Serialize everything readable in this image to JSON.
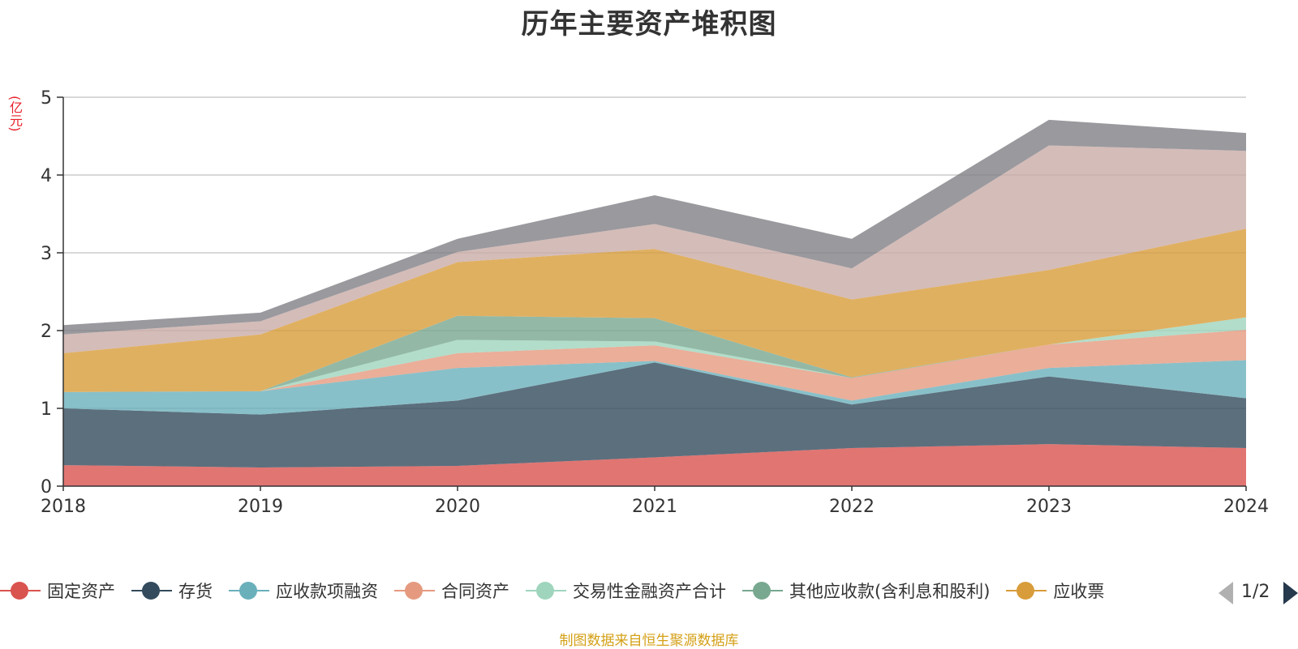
{
  "title": "历年主要资产堆积图",
  "unit": "(亿元)",
  "source_note": "制图数据来自恒生聚源数据库",
  "pager": {
    "text": "1/2"
  },
  "chart_data": {
    "type": "area",
    "stacked": true,
    "title": "历年主要资产堆积图",
    "ylabel": "(亿元)",
    "ylim": [
      0,
      5
    ],
    "yticks": [
      "0",
      "1",
      "2",
      "3",
      "4",
      "5"
    ],
    "categories": [
      "2018",
      "2019",
      "2020",
      "2021",
      "2022",
      "2023",
      "2024"
    ],
    "grid": true,
    "legend_position": "bottom",
    "series": [
      {
        "name": "固定资产",
        "legend": true,
        "color": "#d9534f",
        "values": [
          0.27,
          0.24,
          0.26,
          0.37,
          0.49,
          0.54,
          0.49
        ]
      },
      {
        "name": "存货",
        "legend": true,
        "color": "#334b5c",
        "values": [
          0.73,
          0.68,
          0.84,
          1.22,
          0.56,
          0.87,
          0.64
        ]
      },
      {
        "name": "应收款项融资",
        "legend": true,
        "color": "#6ab0bb",
        "values": [
          0.21,
          0.3,
          0.42,
          0.02,
          0.05,
          0.11,
          0.49
        ]
      },
      {
        "name": "合同资产",
        "legend": true,
        "color": "#e59a7f",
        "values": [
          0.0,
          0.0,
          0.19,
          0.2,
          0.29,
          0.3,
          0.39
        ]
      },
      {
        "name": "交易性金融资产合计",
        "legend": true,
        "color": "#9fd5bd",
        "values": [
          0.0,
          0.0,
          0.17,
          0.05,
          0.0,
          0.0,
          0.16
        ]
      },
      {
        "name": "其他应收款(含利息和股利)",
        "legend": true,
        "color": "#78a890",
        "values": [
          0.0,
          0.0,
          0.31,
          0.3,
          0.01,
          0.0,
          0.0
        ]
      },
      {
        "name": "应收票据",
        "legend_visible_text": "应收票",
        "legend": true,
        "color": "#d89c3a",
        "values": [
          0.5,
          0.73,
          0.69,
          0.89,
          1.0,
          0.96,
          1.14
        ]
      },
      {
        "legend": false,
        "color": "#c9aba6",
        "values": [
          0.24,
          0.17,
          0.13,
          0.32,
          0.4,
          1.6,
          1.0
        ]
      },
      {
        "legend": false,
        "color": "#7f7f86",
        "values": [
          0.12,
          0.11,
          0.17,
          0.37,
          0.38,
          0.33,
          0.23
        ]
      }
    ]
  }
}
